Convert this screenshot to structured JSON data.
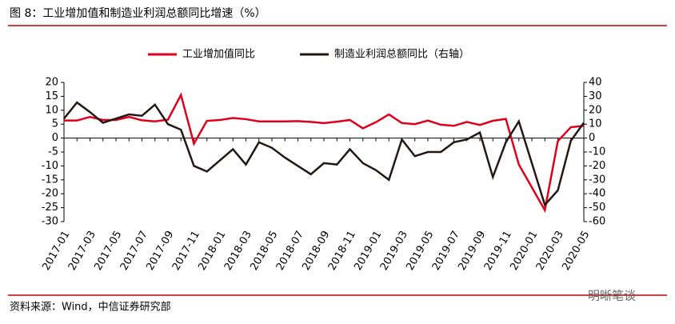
{
  "chart_data": {
    "type": "line",
    "title": "图 8：工业增加值和制造业利润总额同比增速（%）",
    "source": "资料来源：Wind，中信证券研究部",
    "watermark": "明晰笔谈",
    "categories": [
      "2017-01",
      null,
      "2017-03",
      null,
      "2017-05",
      null,
      "2017-07",
      null,
      "2017-09",
      null,
      "2017-11",
      null,
      "2018-01",
      null,
      "2018-03",
      null,
      "2018-05",
      null,
      "2018-07",
      null,
      "2018-09",
      null,
      "2018-11",
      null,
      "2019-01",
      null,
      "2019-03",
      null,
      "2019-05",
      null,
      "2019-07",
      null,
      "2019-09",
      null,
      "2019-11",
      null,
      "2020-01",
      null,
      "2020-03",
      null,
      "2020-05"
    ],
    "series": [
      {
        "name": "工业增加值同比",
        "color": "#e0001b",
        "axis": "y",
        "values": [
          6.3,
          6.3,
          7.6,
          6.5,
          6.5,
          7.6,
          6.4,
          6.0,
          6.6,
          15.5,
          -2.0,
          6.2,
          6.5,
          7.2,
          6.8,
          6.0,
          6.0,
          6.0,
          6.1,
          5.8,
          5.4,
          5.9,
          6.5,
          3.5,
          5.7,
          8.5,
          5.4,
          5.0,
          6.3,
          4.8,
          4.4,
          5.8,
          4.7,
          6.2,
          6.9,
          -9.5,
          -17.7,
          -25.9,
          -1.1,
          3.9,
          4.4
        ]
      },
      {
        "name": "制造业利润总额同比（右轴）",
        "color": "#231815",
        "axis": "y2",
        "values": [
          14,
          25.6,
          18.7,
          11,
          14,
          17,
          16,
          24,
          10,
          6,
          -20,
          -24,
          -16,
          -8,
          -19,
          -3,
          -7,
          -14,
          -20,
          -26,
          -18,
          -19,
          -8,
          -18,
          -23,
          -30,
          -1,
          -13,
          -10,
          -10,
          -3,
          -1,
          4,
          -28,
          -3,
          12,
          -18,
          -48,
          -37.6,
          -2,
          11
        ]
      }
    ],
    "ylim": [
      -30,
      20
    ],
    "yticks": [
      20,
      15,
      10,
      5,
      0,
      -5,
      -10,
      -15,
      -20,
      -25,
      -30
    ],
    "y2lim": [
      -60,
      40
    ],
    "y2ticks": [
      40,
      30,
      20,
      10,
      0,
      -10,
      -20,
      -30,
      -40,
      -50,
      -60
    ],
    "grid": false,
    "legend": "top"
  }
}
